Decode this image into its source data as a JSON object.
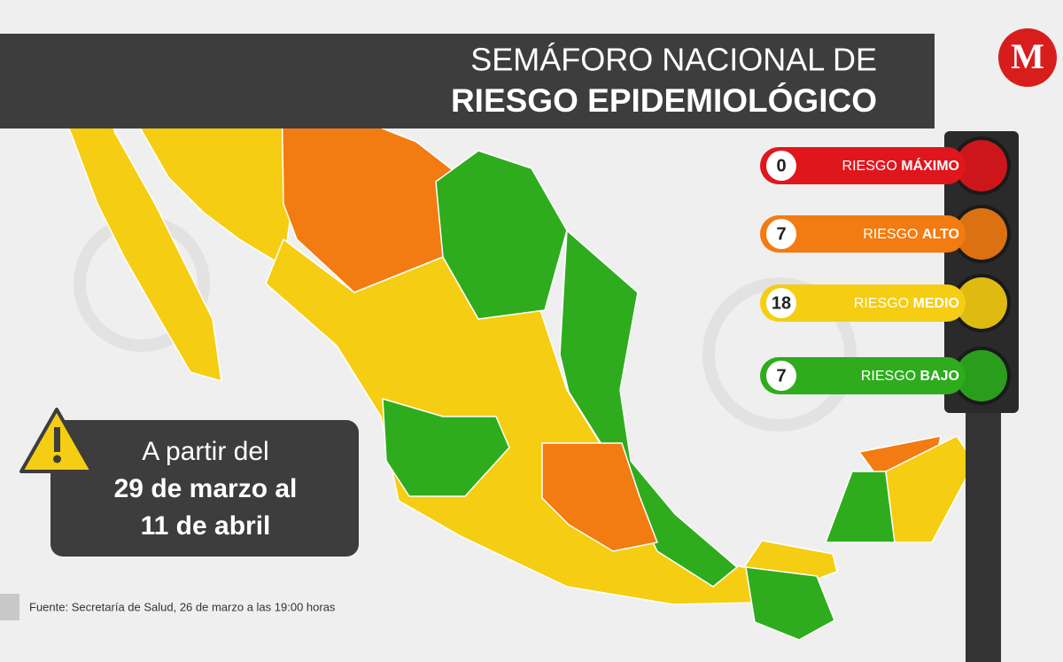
{
  "logo": "M",
  "header": {
    "title_line1": "SEMÁFORO NACIONAL DE",
    "title_line2": "RIESGO EPIDEMIOLÓGICO"
  },
  "legend": [
    {
      "count": 0,
      "label": "RIESGO",
      "level": "MÁXIMO",
      "color": "#e0161d"
    },
    {
      "count": 7,
      "label": "RIESGO",
      "level": "ALTO",
      "color": "#f27b12"
    },
    {
      "count": 18,
      "label": "RIESGO",
      "level": "MEDIO",
      "color": "#f5cd12"
    },
    {
      "count": 7,
      "label": "RIESGO",
      "level": "BAJO",
      "color": "#2eac1d"
    }
  ],
  "notice": {
    "lines": [
      "A partir del",
      "29 de marzo al",
      "11 de abril"
    ]
  },
  "source": "Fuente: Secretaría de Salud, 26 de marzo a las 19:00 horas"
}
